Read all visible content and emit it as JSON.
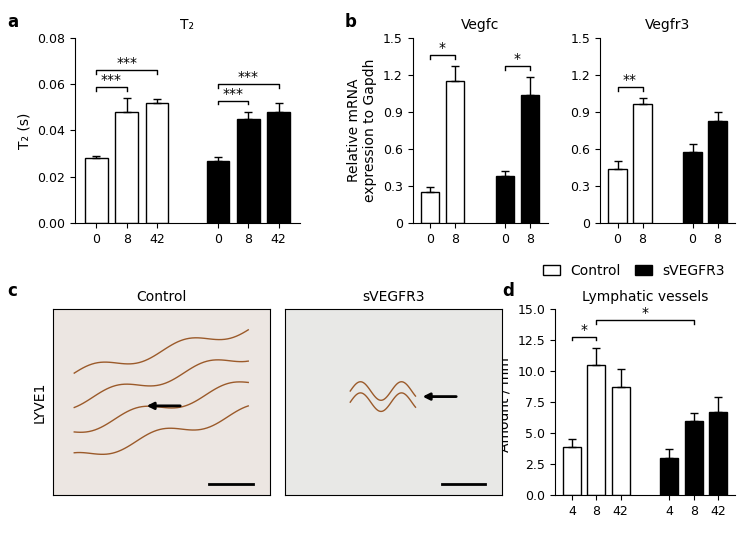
{
  "panel_labels": [
    "a",
    "b",
    "c",
    "d"
  ],
  "images": {
    "row_label": "LYVE1",
    "titles": [
      "Control",
      "sVEGFR3"
    ]
  },
  "chart_data": [
    {
      "type": "bar",
      "title": "T₂",
      "y_label": "T₂ (s)",
      "categories": [
        "0",
        "8",
        "42"
      ],
      "series": [
        {
          "name": "Control",
          "color": "#ffffff",
          "values": [
            0.028,
            0.048,
            0.052
          ],
          "errors": [
            0.001,
            0.006,
            0.0015
          ]
        },
        {
          "name": "sVEGFR3",
          "color": "#000000",
          "values": [
            0.027,
            0.045,
            0.048
          ],
          "errors": [
            0.0015,
            0.003,
            0.004
          ]
        }
      ],
      "ylim": [
        0,
        0.08
      ],
      "yticks": [
        {
          "value": 0,
          "label": "0.00"
        },
        {
          "value": 0.02,
          "label": "0.02"
        },
        {
          "value": 0.04,
          "label": "0.04"
        },
        {
          "value": 0.06,
          "label": "0.06"
        },
        {
          "value": 0.08,
          "label": "0.08"
        }
      ],
      "significance": [
        {
          "from": [
            0,
            0
          ],
          "to": [
            0,
            1
          ],
          "label": "***"
        },
        {
          "from": [
            0,
            0
          ],
          "to": [
            0,
            2
          ],
          "label": "***"
        },
        {
          "from": [
            1,
            0
          ],
          "to": [
            1,
            1
          ],
          "label": "***"
        },
        {
          "from": [
            1,
            0
          ],
          "to": [
            1,
            2
          ],
          "label": "***"
        }
      ]
    },
    {
      "type": "bar",
      "title": "Vegfc",
      "y_label": "Relative mRNA\nexpression to Gapdh",
      "categories": [
        "0",
        "8"
      ],
      "series": [
        {
          "name": "Control",
          "color": "#ffffff",
          "values": [
            0.25,
            1.15
          ],
          "errors": [
            0.04,
            0.12
          ]
        },
        {
          "name": "sVEGFR3",
          "color": "#000000",
          "values": [
            0.38,
            1.04
          ],
          "errors": [
            0.04,
            0.14
          ]
        }
      ],
      "ylim": [
        0,
        1.5
      ],
      "yticks": [
        0,
        0.3,
        0.6,
        0.9,
        1.2,
        1.5
      ],
      "significance": [
        {
          "from": [
            0,
            0
          ],
          "to": [
            0,
            1
          ],
          "label": "*"
        },
        {
          "from": [
            1,
            0
          ],
          "to": [
            1,
            1
          ],
          "label": "*"
        }
      ]
    },
    {
      "type": "bar",
      "title": "Vegfr3",
      "categories": [
        "0",
        "8"
      ],
      "series": [
        {
          "name": "Control",
          "color": "#ffffff",
          "values": [
            0.44,
            0.96
          ],
          "errors": [
            0.06,
            0.05
          ]
        },
        {
          "name": "sVEGFR3",
          "color": "#000000",
          "values": [
            0.58,
            0.83
          ],
          "errors": [
            0.06,
            0.07
          ]
        }
      ],
      "ylim": [
        0,
        1.5
      ],
      "yticks": [
        0,
        0.3,
        0.6,
        0.9,
        1.2,
        1.5
      ],
      "legend": "lower right",
      "significance": [
        {
          "from": [
            0,
            0
          ],
          "to": [
            0,
            1
          ],
          "label": "**"
        }
      ]
    },
    {
      "type": "bar",
      "title": "Lymphatic vessels",
      "y_label": "Amount / mm²",
      "categories": [
        "4",
        "8",
        "42"
      ],
      "series": [
        {
          "name": "Control",
          "color": "#ffffff",
          "values": [
            3.9,
            10.5,
            8.7
          ],
          "errors": [
            0.6,
            1.4,
            1.5
          ]
        },
        {
          "name": "sVEGFR3",
          "color": "#000000",
          "values": [
            3.0,
            6.0,
            6.7
          ],
          "errors": [
            0.7,
            0.6,
            1.2
          ]
        }
      ],
      "ylim": [
        0,
        15
      ],
      "yticks": [
        {
          "value": 0,
          "label": "0.0"
        },
        {
          "value": 2.5,
          "label": "2.5"
        },
        {
          "value": 5,
          "label": "5.0"
        },
        {
          "value": 7.5,
          "label": "7.5"
        },
        {
          "value": 10,
          "label": "10.0"
        },
        {
          "value": 12.5,
          "label": "12.5"
        },
        {
          "value": 15,
          "label": "15.0"
        }
      ],
      "significance": [
        {
          "from": [
            0,
            0
          ],
          "to": [
            0,
            1
          ],
          "label": "*"
        },
        {
          "from": [
            0,
            1
          ],
          "to": [
            1,
            1
          ],
          "label": "*"
        }
      ]
    }
  ]
}
